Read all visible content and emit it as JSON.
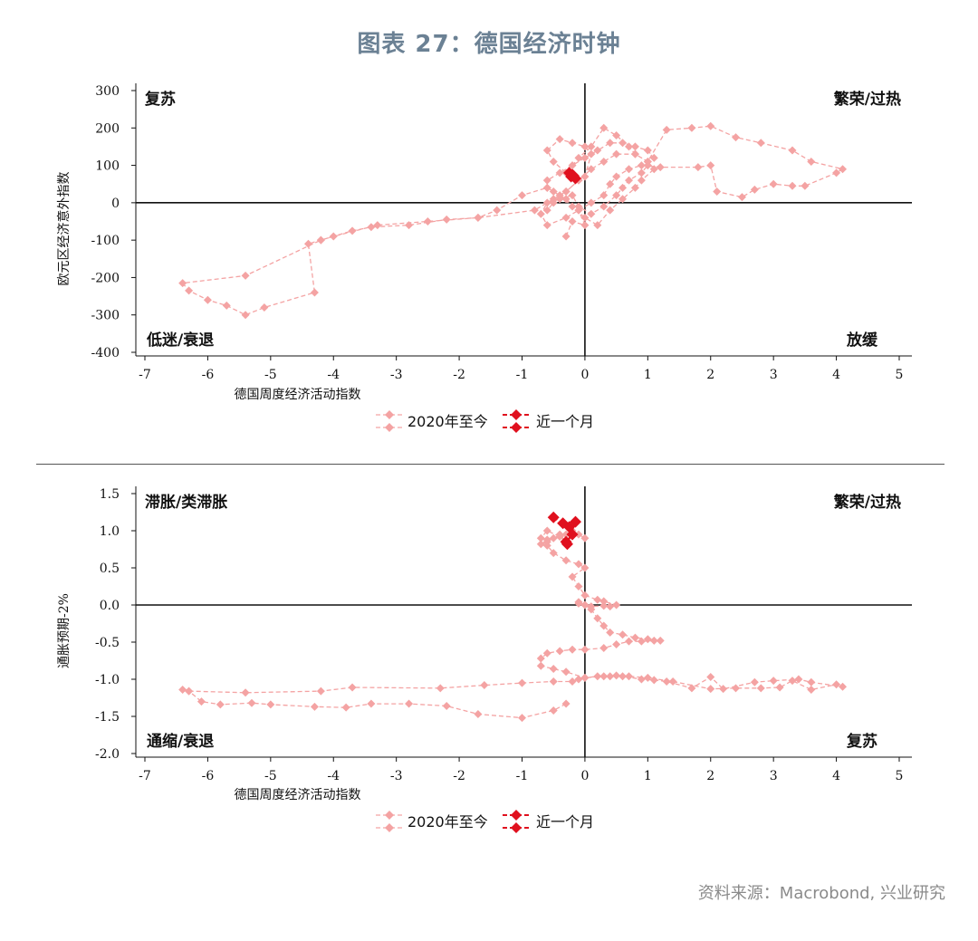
{
  "title": "图表 27：德国经济时钟",
  "source": "资料来源：Macrobond, 兴业研究",
  "colors": {
    "history": "#f4a3a3",
    "recent": "#e0101e",
    "title": "#6b8194"
  },
  "legend": {
    "history": "2020年至今",
    "recent": "近一个月"
  },
  "chart_data": [
    {
      "type": "scatter",
      "xlabel": "德国周度经济活动指数",
      "ylabel": "欧元区经济意外指数",
      "xlim": [
        -7,
        5
      ],
      "ylim": [
        -400,
        300
      ],
      "xticks": [
        -7,
        -6,
        -5,
        -4,
        -3,
        -2,
        -1,
        0,
        1,
        2,
        3,
        4,
        5
      ],
      "yticks": [
        -400,
        -300,
        -200,
        -100,
        0,
        100,
        200,
        300
      ],
      "quadrants": {
        "top_left": "复苏",
        "top_right": "繁荣/过热",
        "bottom_left": "低迷/衰退",
        "bottom_right": "放缓"
      },
      "series": [
        {
          "name": "2020年至今",
          "x": [
            -0.3,
            -0.2,
            0.0,
            -0.1,
            -0.3,
            -0.5,
            -0.6,
            -1.0,
            -1.4,
            -1.7,
            -2.2,
            -2.8,
            -3.4,
            -3.7,
            -4.2,
            -4.4,
            -4.3,
            -5.1,
            -5.4,
            -5.7,
            -6.0,
            -6.3,
            -6.4,
            -5.4,
            -4.2,
            -4.0,
            -3.3,
            -2.5,
            -1.7,
            -0.8,
            -0.5,
            -0.3,
            -0.1,
            0.0,
            0.1,
            0.0,
            -0.2,
            -0.4,
            -0.6,
            -0.5,
            -0.3,
            -0.1,
            0.1,
            0.3,
            0.5,
            0.7,
            0.8,
            1.0,
            1.3,
            1.7,
            2.0,
            2.4,
            2.8,
            3.3,
            3.6,
            4.1,
            4.0,
            3.5,
            3.3,
            3.0,
            2.7,
            2.5,
            2.1,
            2.0,
            1.8,
            1.2,
            0.9,
            0.7,
            0.5,
            0.4,
            0.3,
            0.1,
            -0.1,
            -0.3,
            -0.6,
            -0.7,
            -0.6,
            -0.4,
            -0.2,
            -0.1,
            0.1,
            0.3,
            0.5,
            0.6,
            0.7,
            0.9,
            1.0,
            1.1,
            1.0,
            0.8,
            0.6,
            0.4,
            0.2,
            0.0,
            -0.2,
            -0.4,
            -0.6,
            -0.6,
            -0.4,
            -0.2,
            0.0,
            0.2,
            0.4,
            0.6,
            0.8,
            0.9,
            1.1,
            1.0,
            0.8,
            0.5,
            0.3,
            0.1,
            -0.1,
            -0.3,
            -0.5,
            -0.6
          ],
          "y": [
            -90,
            -50,
            -60,
            -20,
            10,
            30,
            40,
            20,
            -20,
            -40,
            -45,
            -60,
            -65,
            -75,
            -100,
            -110,
            -240,
            -280,
            -300,
            -275,
            -260,
            -235,
            -215,
            -195,
            -100,
            -90,
            -60,
            -50,
            -40,
            -20,
            10,
            30,
            60,
            70,
            130,
            150,
            160,
            170,
            140,
            110,
            80,
            120,
            150,
            200,
            180,
            150,
            130,
            110,
            195,
            200,
            205,
            175,
            160,
            140,
            110,
            90,
            80,
            45,
            45,
            50,
            35,
            15,
            30,
            100,
            95,
            95,
            100,
            90,
            70,
            50,
            20,
            0,
            -20,
            -40,
            -60,
            -30,
            0,
            10,
            20,
            -10,
            -30,
            -10,
            20,
            40,
            60,
            80,
            100,
            120,
            140,
            150,
            160,
            160,
            140,
            120,
            100,
            80,
            60,
            40,
            20,
            -10,
            -40,
            -60,
            -20,
            10,
            40,
            60,
            90,
            110,
            130,
            130,
            110,
            90,
            60,
            30,
            0,
            -20
          ]
        },
        {
          "name": "近一个月",
          "x": [
            -0.25,
            -0.2,
            -0.15,
            -0.22,
            -0.18
          ],
          "y": [
            80,
            75,
            65,
            70,
            72
          ]
        }
      ]
    },
    {
      "type": "scatter",
      "xlabel": "德国周度经济活动指数",
      "ylabel": "通胀预期-2%",
      "xlim": [
        -7,
        5
      ],
      "ylim": [
        -2.0,
        1.5
      ],
      "xticks": [
        -7,
        -6,
        -5,
        -4,
        -3,
        -2,
        -1,
        0,
        1,
        2,
        3,
        4,
        5
      ],
      "yticks": [
        -2.0,
        -1.5,
        -1.0,
        -0.5,
        0.0,
        0.5,
        1.0,
        1.5
      ],
      "ytick_labels": [
        "-2.0",
        "-1.5",
        "-1.0",
        "-0.5",
        "0.0",
        "0.5",
        "1.0",
        "1.5"
      ],
      "quadrants": {
        "top_left": "滞胀/类滞胀",
        "top_right": "繁荣/过热",
        "bottom_left": "通缩/衰退",
        "bottom_right": "复苏"
      },
      "series": [
        {
          "name": "2020年至今",
          "x": [
            -0.3,
            -0.5,
            -1.0,
            -1.7,
            -2.2,
            -2.8,
            -3.4,
            -3.8,
            -4.3,
            -5.0,
            -5.3,
            -5.8,
            -6.1,
            -6.3,
            -6.4,
            -6.3,
            -5.4,
            -4.2,
            -3.7,
            -2.3,
            -1.6,
            -1.0,
            -0.5,
            -0.2,
            -0.1,
            0.0,
            0.3,
            0.5,
            0.7,
            1.0,
            1.4,
            2.0,
            2.4,
            2.8,
            3.1,
            3.3,
            3.6,
            4.0,
            4.1,
            3.6,
            3.4,
            3.0,
            2.7,
            2.2,
            2.0,
            1.7,
            1.3,
            1.1,
            0.9,
            0.6,
            0.4,
            0.2,
            0.0,
            -0.3,
            -0.5,
            -0.7,
            -0.7,
            -0.6,
            -0.4,
            -0.2,
            0.0,
            0.3,
            0.5,
            0.7,
            0.9,
            1.1,
            1.2,
            1.0,
            0.8,
            0.6,
            0.4,
            0.3,
            0.2,
            0.1,
            0.0,
            -0.1,
            -0.1,
            0.0,
            0.1,
            0.3,
            0.4,
            0.5,
            0.3,
            0.2,
            0.0,
            -0.1,
            -0.2,
            0.0,
            -0.1,
            -0.3,
            -0.5,
            -0.6,
            -0.7,
            -0.6,
            -0.4,
            -0.3,
            -0.4,
            -0.6,
            -0.7,
            -0.6,
            -0.5,
            -0.3,
            -0.2,
            -0.1,
            0.0
          ],
          "y": [
            -1.33,
            -1.42,
            -1.52,
            -1.47,
            -1.36,
            -1.33,
            -1.33,
            -1.38,
            -1.37,
            -1.34,
            -1.32,
            -1.34,
            -1.3,
            -1.16,
            -1.14,
            -1.16,
            -1.18,
            -1.16,
            -1.11,
            -1.12,
            -1.08,
            -1.05,
            -1.03,
            -1.03,
            -1.0,
            -0.98,
            -0.96,
            -0.95,
            -0.96,
            -0.98,
            -1.03,
            -1.13,
            -1.12,
            -1.12,
            -1.11,
            -1.02,
            -1.14,
            -1.07,
            -1.1,
            -1.04,
            -1.0,
            -1.02,
            -1.04,
            -1.13,
            -0.97,
            -1.12,
            -1.03,
            -1.01,
            -1.0,
            -0.96,
            -0.96,
            -0.96,
            -0.98,
            -0.9,
            -0.86,
            -0.82,
            -0.72,
            -0.65,
            -0.62,
            -0.6,
            -0.6,
            -0.58,
            -0.53,
            -0.49,
            -0.49,
            -0.48,
            -0.48,
            -0.46,
            -0.44,
            -0.4,
            -0.37,
            -0.28,
            -0.18,
            -0.06,
            0.0,
            0.04,
            0.02,
            0.0,
            -0.02,
            -0.01,
            -0.02,
            0.0,
            0.05,
            0.07,
            0.13,
            0.25,
            0.38,
            0.5,
            0.55,
            0.6,
            0.7,
            0.8,
            0.9,
            1.0,
            0.92,
            0.85,
            0.95,
            0.88,
            0.82,
            0.85,
            0.9,
            0.95,
            1.0,
            0.95,
            0.9
          ]
        },
        {
          "name": "近一个月",
          "x": [
            -0.5,
            -0.35,
            -0.25,
            -0.2,
            -0.3,
            -0.15,
            -0.28
          ],
          "y": [
            1.18,
            1.1,
            1.05,
            0.95,
            0.85,
            1.12,
            0.82
          ]
        }
      ]
    }
  ]
}
